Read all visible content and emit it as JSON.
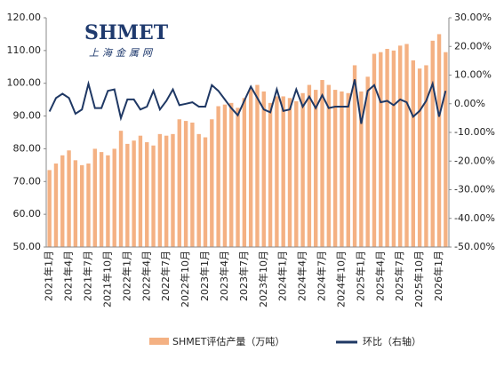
{
  "chart_data": {
    "type": "bar-line",
    "logo": "SHMET",
    "logo_subtitle": "上海金属网",
    "categories": [
      "2021年1月",
      null,
      null,
      "2021年4月",
      null,
      null,
      "2021年7月",
      null,
      null,
      "2021年10月",
      null,
      null,
      "2022年1月",
      null,
      null,
      "2022年4月",
      null,
      null,
      "2022年7月",
      null,
      null,
      "2022年10月",
      null,
      null,
      "2023年1月",
      null,
      null,
      "2023年4月",
      null,
      null,
      "2023年7月",
      null,
      null,
      "2023年10月",
      null,
      null,
      "2024年1月",
      null,
      null,
      "2024年4月",
      null,
      null,
      "2024年7月",
      null,
      null,
      "2024年10月",
      null,
      null,
      "2025年1月",
      null,
      null,
      "2025年4月",
      null,
      null,
      "2025年7月",
      null,
      null,
      "2025年10月",
      null,
      null,
      "2026年1月",
      null
    ],
    "series": [
      {
        "name": "SHMET评估产量（万吨）",
        "color": "#f4b183",
        "values": [
          73.5,
          75.5,
          78,
          79.5,
          76.5,
          75,
          75.5,
          80,
          79,
          78,
          80,
          85.5,
          81.5,
          82.5,
          84,
          82,
          81,
          84.5,
          84,
          84.5,
          89,
          88.5,
          88,
          84.5,
          83.5,
          89,
          93,
          93.5,
          94,
          92.5,
          95.5,
          98.5,
          99.5,
          97.5,
          94,
          96,
          96,
          95.5,
          94.5,
          97,
          99.5,
          98,
          101,
          99.5,
          98,
          97.5,
          97,
          105.5,
          97.5,
          102,
          109,
          109.5,
          110.5,
          110,
          111.5,
          112,
          107,
          104.5,
          105.5,
          113,
          115,
          109.5
        ]
      },
      {
        "name": "环比（右轴）",
        "color": "#1f3864",
        "axis": "y2",
        "values": [
          -2.7,
          2,
          3.5,
          2,
          -3.5,
          -2,
          7,
          -1.5,
          -1.5,
          4.5,
          5,
          -5,
          1.5,
          1.5,
          -2,
          -1,
          4.5,
          -2,
          1,
          5,
          -0.5,
          0,
          0.5,
          -1,
          -1,
          6.5,
          4.5,
          1.5,
          -1.5,
          -4,
          1,
          6,
          2,
          -2,
          -3,
          5,
          -2.5,
          -2,
          5,
          -1,
          2.5,
          -1.5,
          3,
          -1.5,
          -1,
          -1,
          -1,
          8.5,
          -7,
          4.5,
          6.5,
          0.5,
          1,
          -0.5,
          1.5,
          0.5,
          -4.5,
          -2.5,
          1,
          7,
          -4.5,
          4.5
        ]
      }
    ],
    "ylim": [
      50,
      120
    ],
    "yticks": [
      {
        "value": 50,
        "label": "50.00"
      },
      {
        "value": 60,
        "label": "60.00"
      },
      {
        "value": 70,
        "label": "70.00"
      },
      {
        "value": 80,
        "label": "80.00"
      },
      {
        "value": 90,
        "label": "90.00"
      },
      {
        "value": 100,
        "label": "100.00"
      },
      {
        "value": 110,
        "label": "110.00"
      },
      {
        "value": 120,
        "label": "120.00"
      }
    ],
    "y2lim": [
      -50,
      30
    ],
    "y2ticks": [
      {
        "value": -50,
        "label": "-50.00%"
      },
      {
        "value": -40,
        "label": "-40.00%"
      },
      {
        "value": -30,
        "label": "-30.00%"
      },
      {
        "value": -20,
        "label": "-20.00%"
      },
      {
        "value": -10,
        "label": "-10.00%"
      },
      {
        "value": 0,
        "label": "0.00%"
      },
      {
        "value": 10,
        "label": "10.00%"
      },
      {
        "value": 20,
        "label": "20.00%"
      },
      {
        "value": 30,
        "label": "30.00%"
      }
    ],
    "legend": "bottom"
  }
}
